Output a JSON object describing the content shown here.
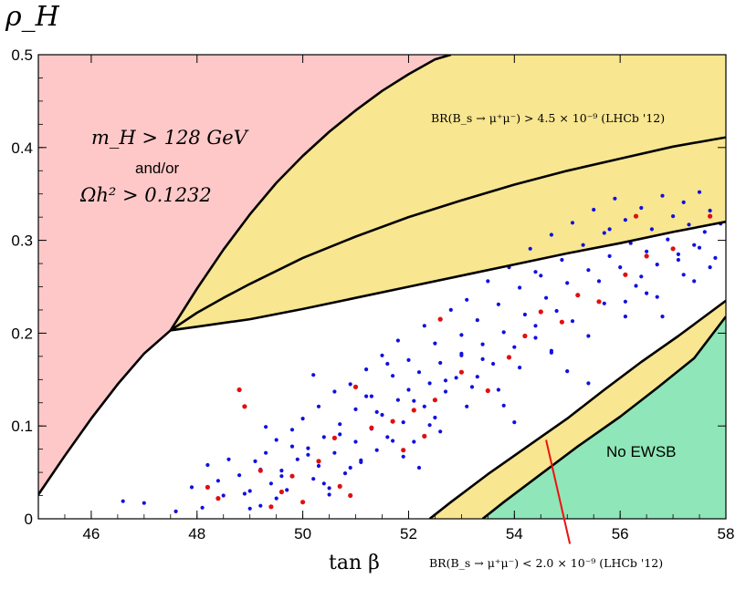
{
  "chart_data": {
    "type": "scatter",
    "title": "",
    "xlabel": "tan β",
    "ylabel": "ρ_H",
    "xlim": [
      45,
      58
    ],
    "ylim": [
      0,
      0.5
    ],
    "xticks": [
      46,
      48,
      50,
      52,
      54,
      56,
      58
    ],
    "yticks": [
      0,
      0.1,
      0.2,
      0.3,
      0.4,
      0.5
    ],
    "xtick_labels": [
      "46",
      "48",
      "50",
      "52",
      "54",
      "56",
      "58"
    ],
    "ytick_labels": [
      "0",
      "0.1",
      "0.2",
      "0.3",
      "0.4",
      "0.5"
    ],
    "colors": {
      "excluded_region": "#ffc8c8",
      "bs_band": "#f8e690",
      "no_ewsb_region": "#8fe6b8",
      "blue_points": "#1010e0",
      "red_points": "#e01010",
      "boundary": "#000000",
      "pointer": "#ee1111"
    },
    "regions": [
      {
        "name": "excluded-mH-relic",
        "label_lines": [
          "m_H > 128 GeV",
          "and/or",
          "Ωh² > 0.1232"
        ]
      },
      {
        "name": "no-ewsb",
        "label": "No EWSB"
      }
    ],
    "annotations": {
      "upper_band": "BR(B_s → μ⁺μ⁻) > 4.5 × 10⁻⁹  (LHCb '12)",
      "lower_band": "BR(B_s → μ⁺μ⁻) < 2.0 × 10⁻⁹ (LHCb '12)"
    },
    "curves": {
      "red_boundary": [
        [
          45,
          0.026
        ],
        [
          45.5,
          0.068
        ],
        [
          46,
          0.108
        ],
        [
          46.5,
          0.145
        ],
        [
          47,
          0.178
        ],
        [
          47.5,
          0.203
        ],
        [
          48,
          0.248
        ],
        [
          48.5,
          0.29
        ],
        [
          49,
          0.328
        ],
        [
          49.5,
          0.362
        ],
        [
          50,
          0.391
        ],
        [
          50.5,
          0.417
        ],
        [
          51,
          0.44
        ],
        [
          51.5,
          0.461
        ],
        [
          52,
          0.479
        ],
        [
          52.5,
          0.495
        ],
        [
          52.8,
          0.5
        ]
      ],
      "upper_bs_top": [
        [
          47.5,
          0.203
        ],
        [
          48,
          0.222
        ],
        [
          48.5,
          0.238
        ],
        [
          49,
          0.253
        ],
        [
          50,
          0.281
        ],
        [
          51,
          0.304
        ],
        [
          52,
          0.325
        ],
        [
          53,
          0.343
        ],
        [
          54,
          0.36
        ],
        [
          55,
          0.375
        ],
        [
          56,
          0.388
        ],
        [
          57,
          0.401
        ],
        [
          58,
          0.411
        ]
      ],
      "upper_bs_bottom": [
        [
          47.5,
          0.203
        ],
        [
          48,
          0.207
        ],
        [
          49,
          0.215
        ],
        [
          50,
          0.226
        ],
        [
          51,
          0.238
        ],
        [
          52,
          0.25
        ],
        [
          53,
          0.262
        ],
        [
          54,
          0.274
        ],
        [
          55,
          0.286
        ],
        [
          56,
          0.297
        ],
        [
          57,
          0.309
        ],
        [
          58,
          0.32
        ]
      ],
      "upper_bs_topright": [
        [
          53.1,
          0.5
        ],
        [
          58,
          0.5
        ]
      ],
      "lower_bs_top": [
        [
          52.4,
          0
        ],
        [
          52.8,
          0.018
        ],
        [
          53.5,
          0.048
        ],
        [
          54.2,
          0.076
        ],
        [
          55,
          0.108
        ],
        [
          55.7,
          0.139
        ],
        [
          56.4,
          0.169
        ],
        [
          57.1,
          0.197
        ],
        [
          58,
          0.235
        ]
      ],
      "lower_bs_bottom": [
        [
          53.4,
          0
        ],
        [
          53.8,
          0.018
        ],
        [
          54.5,
          0.048
        ],
        [
          55.2,
          0.078
        ],
        [
          56,
          0.11
        ],
        [
          56.7,
          0.141
        ],
        [
          57.4,
          0.173
        ],
        [
          58,
          0.218
        ]
      ],
      "pointer": [
        [
          54.6,
          0.085
        ],
        [
          55.05,
          -0.027
        ]
      ]
    },
    "series": [
      {
        "name": "allowed points",
        "color": "#1010e0",
        "x": [
          46.6,
          47.0,
          47.6,
          47.9,
          48.1,
          48.2,
          48.5,
          48.8,
          49.0,
          49.1,
          49.2,
          49.3,
          49.4,
          49.5,
          49.5,
          49.6,
          49.7,
          49.8,
          49.9,
          50.0,
          50.0,
          50.1,
          50.2,
          50.3,
          50.3,
          50.4,
          50.5,
          50.6,
          50.6,
          50.7,
          50.8,
          50.9,
          51.0,
          51.0,
          51.1,
          51.2,
          51.3,
          51.3,
          51.4,
          51.5,
          51.5,
          51.6,
          51.7,
          51.8,
          51.8,
          51.9,
          52.0,
          52.0,
          52.1,
          52.2,
          52.3,
          52.3,
          52.4,
          52.5,
          52.5,
          52.6,
          52.7,
          52.8,
          52.9,
          53.0,
          53.0,
          53.1,
          53.2,
          53.3,
          53.4,
          53.5,
          53.6,
          53.7,
          53.8,
          53.9,
          54.0,
          54.1,
          54.2,
          54.3,
          54.4,
          54.5,
          54.6,
          54.7,
          54.8,
          54.9,
          55.0,
          55.1,
          55.2,
          55.3,
          55.4,
          55.5,
          55.6,
          55.7,
          55.8,
          55.9,
          56.0,
          56.1,
          56.2,
          56.3,
          56.4,
          56.5,
          56.6,
          56.7,
          56.8,
          56.9,
          57.0,
          57.1,
          57.2,
          57.3,
          57.4,
          57.5,
          57.6,
          57.7,
          57.8,
          57.9,
          48.4,
          48.9,
          49.2,
          49.6,
          50.1,
          50.4,
          50.7,
          51.1,
          51.4,
          51.7,
          52.1,
          52.4,
          52.7,
          53.1,
          53.4,
          53.7,
          54.1,
          54.4,
          54.7,
          55.1,
          55.4,
          55.7,
          56.1,
          56.4,
          56.7,
          57.1,
          57.4,
          57.7,
          49.0,
          49.8,
          50.5,
          51.2,
          51.9,
          52.6,
          53.3,
          54.0,
          54.7,
          55.4,
          56.1,
          56.8,
          57.5,
          50.2,
          51.6,
          53.0,
          54.4,
          55.8,
          57.2,
          48.6,
          49.3,
          50.9,
          52.2,
          53.8,
          55.0,
          56.5
        ],
        "y": [
          0.019,
          0.017,
          0.008,
          0.034,
          0.012,
          0.058,
          0.025,
          0.047,
          0.03,
          0.062,
          0.014,
          0.071,
          0.038,
          0.022,
          0.085,
          0.052,
          0.031,
          0.096,
          0.064,
          0.018,
          0.108,
          0.076,
          0.043,
          0.121,
          0.057,
          0.088,
          0.033,
          0.137,
          0.071,
          0.102,
          0.049,
          0.145,
          0.083,
          0.118,
          0.061,
          0.161,
          0.097,
          0.132,
          0.074,
          0.176,
          0.112,
          0.088,
          0.154,
          0.128,
          0.192,
          0.104,
          0.139,
          0.171,
          0.083,
          0.158,
          0.121,
          0.208,
          0.146,
          0.109,
          0.189,
          0.168,
          0.137,
          0.225,
          0.152,
          0.198,
          0.176,
          0.236,
          0.142,
          0.214,
          0.188,
          0.256,
          0.167,
          0.231,
          0.201,
          0.271,
          0.185,
          0.249,
          0.22,
          0.291,
          0.208,
          0.262,
          0.238,
          0.306,
          0.224,
          0.279,
          0.254,
          0.319,
          0.241,
          0.295,
          0.268,
          0.333,
          0.256,
          0.308,
          0.283,
          0.345,
          0.271,
          0.322,
          0.297,
          0.251,
          0.335,
          0.288,
          0.312,
          0.274,
          0.348,
          0.301,
          0.326,
          0.285,
          0.341,
          0.317,
          0.295,
          0.352,
          0.309,
          0.332,
          0.281,
          0.318,
          0.041,
          0.027,
          0.053,
          0.046,
          0.069,
          0.038,
          0.091,
          0.063,
          0.115,
          0.084,
          0.127,
          0.101,
          0.149,
          0.121,
          0.172,
          0.139,
          0.163,
          0.195,
          0.181,
          0.213,
          0.197,
          0.232,
          0.218,
          0.261,
          0.239,
          0.279,
          0.256,
          0.271,
          0.011,
          0.078,
          0.026,
          0.132,
          0.067,
          0.094,
          0.153,
          0.104,
          0.179,
          0.146,
          0.234,
          0.218,
          0.292,
          0.155,
          0.167,
          0.178,
          0.266,
          0.312,
          0.263,
          0.064,
          0.099,
          0.055,
          0.055,
          0.122,
          0.159,
          0.243
        ]
      },
      {
        "name": "highlighted points",
        "color": "#e01010",
        "x": [
          48.2,
          48.4,
          48.8,
          48.9,
          49.4,
          49.6,
          49.8,
          50.0,
          50.3,
          50.6,
          50.9,
          51.0,
          51.3,
          51.7,
          51.9,
          52.1,
          52.3,
          52.6,
          53.0,
          53.5,
          53.9,
          54.5,
          54.9,
          55.2,
          55.6,
          56.1,
          56.5,
          57.0,
          57.7,
          49.2,
          50.7,
          52.5,
          54.2,
          56.3
        ],
        "y": [
          0.034,
          0.022,
          0.139,
          0.121,
          0.013,
          0.029,
          0.046,
          0.018,
          0.062,
          0.087,
          0.025,
          0.142,
          0.098,
          0.105,
          0.074,
          0.117,
          0.089,
          0.215,
          0.158,
          0.138,
          0.174,
          0.223,
          0.212,
          0.241,
          0.234,
          0.263,
          0.283,
          0.291,
          0.326,
          0.052,
          0.035,
          0.128,
          0.197,
          0.326
        ]
      }
    ]
  }
}
